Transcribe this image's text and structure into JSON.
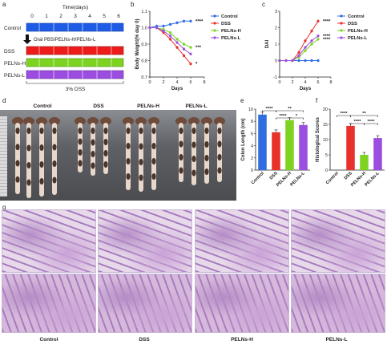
{
  "panels": {
    "a": "a",
    "b": "b",
    "c": "c",
    "d": "d",
    "e": "e",
    "f": "f",
    "g": "g"
  },
  "panel_a": {
    "timeline_title": "Time(days)",
    "day_ticks": [
      "0",
      "1",
      "2",
      "3",
      "4",
      "5",
      "6"
    ],
    "rows": [
      {
        "label": "Control",
        "color": "#1f5ce6"
      },
      {
        "label": "DSS",
        "color": "#ee1b1b"
      },
      {
        "label": "PELNs-H",
        "color": "#7ed321"
      },
      {
        "label": "PELNs-L",
        "color": "#9b4de0"
      }
    ],
    "arrow_text": "Oral PBS/PELNs-H/PELNs-L",
    "bottom_text": "3% DSS"
  },
  "chart_data": [
    {
      "id": "b",
      "type": "line",
      "ylabel": "Body Weight(% day 0)",
      "xlabel": "Days",
      "xlim": [
        0,
        8
      ],
      "ylim": [
        0.7,
        1.1
      ],
      "xticks": [
        "0",
        "2",
        "4",
        "6",
        "8"
      ],
      "yticks": [
        "0.7",
        "0.8",
        "0.9",
        "1.0",
        "1.1"
      ],
      "x": [
        0,
        1,
        2,
        3,
        4,
        5,
        6
      ],
      "series": [
        {
          "name": "Control",
          "color": "#2f6de0",
          "values": [
            1.0,
            1.01,
            1.01,
            1.02,
            1.03,
            1.04,
            1.04
          ]
        },
        {
          "name": "DSS",
          "color": "#e8312a",
          "values": [
            1.0,
            1.0,
            0.97,
            0.93,
            0.88,
            0.83,
            0.78
          ]
        },
        {
          "name": "PELNs-H",
          "color": "#7ed321",
          "values": [
            1.0,
            1.0,
            0.99,
            0.97,
            0.93,
            0.9,
            0.88
          ]
        },
        {
          "name": "PELNs-L",
          "color": "#9b4de0",
          "values": [
            1.0,
            1.0,
            0.98,
            0.95,
            0.91,
            0.87,
            0.84
          ]
        }
      ],
      "significance": [
        "****",
        "***",
        "*"
      ]
    },
    {
      "id": "c",
      "type": "line",
      "ylabel": "DAI",
      "xlabel": "Days",
      "xlim": [
        0,
        8
      ],
      "ylim": [
        -1,
        3
      ],
      "xticks": [
        "0",
        "2",
        "4",
        "6",
        "8"
      ],
      "yticks": [
        "-1",
        "0",
        "1",
        "2",
        "3"
      ],
      "x": [
        0,
        1,
        2,
        3,
        4,
        5,
        6
      ],
      "series": [
        {
          "name": "Control",
          "color": "#2f6de0",
          "values": [
            0,
            0,
            0,
            0,
            0,
            0,
            0
          ]
        },
        {
          "name": "DSS",
          "color": "#e8312a",
          "values": [
            0,
            0,
            0,
            0.5,
            1.2,
            1.8,
            2.4
          ]
        },
        {
          "name": "PELNs-H",
          "color": "#7ed321",
          "values": [
            0,
            0,
            0,
            0.2,
            0.6,
            1.0,
            1.3
          ]
        },
        {
          "name": "PELNs-L",
          "color": "#9b4de0",
          "values": [
            0,
            0,
            0,
            0.3,
            0.8,
            1.2,
            1.5
          ]
        }
      ],
      "significance": [
        "****",
        "****",
        "****"
      ]
    },
    {
      "id": "e",
      "type": "bar",
      "ylabel": "Colon Length (cm)",
      "ylim": [
        0,
        10
      ],
      "yticks": [
        "0",
        "2",
        "4",
        "6",
        "8",
        "10"
      ],
      "categories": [
        "Control",
        "DSS",
        "PELNs-H",
        "PELNs-L"
      ],
      "values": [
        9.1,
        6.2,
        8.2,
        7.4
      ],
      "colors": [
        "#2f6de0",
        "#e8312a",
        "#7ed321",
        "#9b4de0"
      ],
      "significance": [
        "****",
        "**",
        "****",
        "*"
      ]
    },
    {
      "id": "f",
      "type": "bar",
      "ylabel": "Histological Scores",
      "ylim": [
        0,
        20
      ],
      "yticks": [
        "0",
        "5",
        "10",
        "15",
        "20"
      ],
      "categories": [
        "Control",
        "DSS",
        "PELNs-H",
        "PELNs-L"
      ],
      "values": [
        0,
        14.5,
        5,
        10.5
      ],
      "colors": [
        "#2f6de0",
        "#e8312a",
        "#7ed321",
        "#9b4de0"
      ],
      "significance": [
        "****",
        "**",
        "****",
        "****"
      ]
    }
  ],
  "panel_d": {
    "groups": [
      "Control",
      "DSS",
      "PELNs-H",
      "PELNs-L"
    ]
  },
  "panel_g": {
    "groups": [
      "Control",
      "DSS",
      "PELNs-H",
      "PELNs-L"
    ]
  }
}
